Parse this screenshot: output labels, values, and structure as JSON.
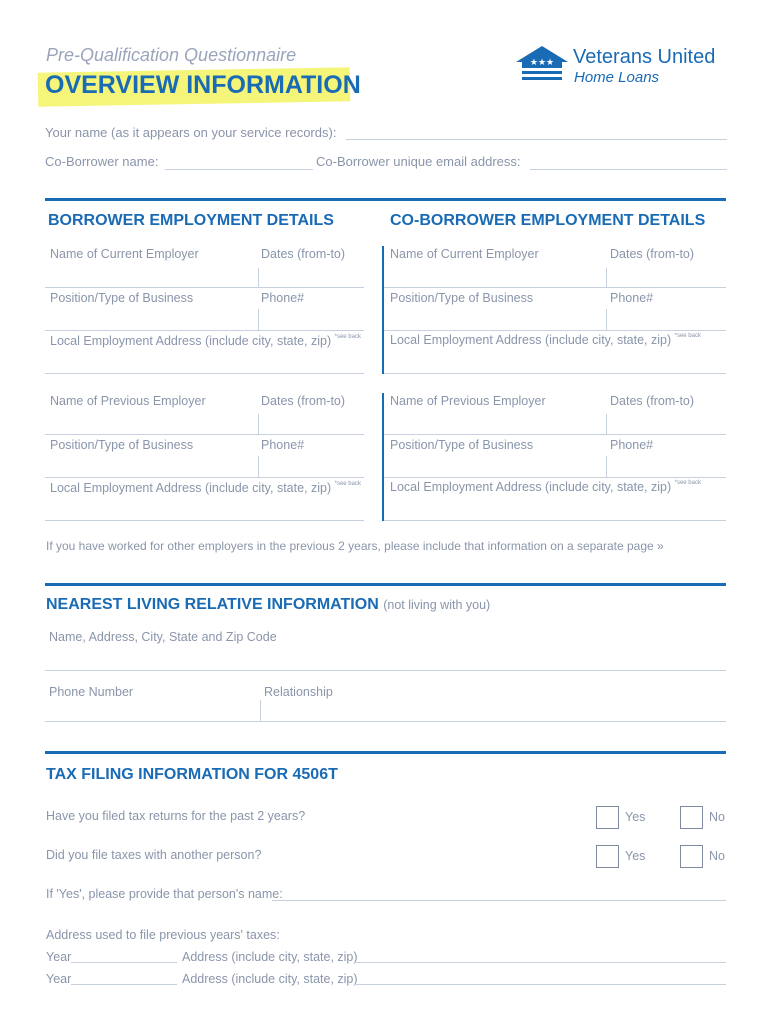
{
  "header": {
    "subtitle": "Pre-Qualification Questionnaire",
    "title": "OVERVIEW INFORMATION",
    "logo_line1": "Veterans United",
    "logo_line2": "Home Loans"
  },
  "top": {
    "your_name": "Your name (as it appears on your service records):",
    "co_name": "Co-Borrower name:",
    "co_email": "Co-Borrower unique email address:"
  },
  "employment": {
    "borrower_title": "BORROWER EMPLOYMENT DETAILS",
    "coborrower_title": "CO-BORROWER EMPLOYMENT DETAILS",
    "current_employer": "Name of Current Employer",
    "previous_employer": "Name of Previous Employer",
    "dates": "Dates (from-to)",
    "position": "Position/Type of Business",
    "phone": "Phone#",
    "address": "Local Employment Address (include city, state, zip)",
    "see_back": "*see back",
    "note": "If you have worked for other employers in the previous 2 years, please include that information on a separate page »"
  },
  "relative": {
    "title": "NEAREST LIVING RELATIVE INFORMATION",
    "title_note": "(not living with you)",
    "name_address": "Name, Address, City, State and Zip Code",
    "phone": "Phone Number",
    "relationship": "Relationship"
  },
  "tax": {
    "title": "TAX FILING INFORMATION FOR 4506T",
    "q1": "Have you filed tax returns for the past 2 years?",
    "q2": "Did you file taxes with another person?",
    "yes": "Yes",
    "no": "No",
    "if_yes": "If 'Yes', please provide that person's name:",
    "address_used": "Address used to file previous years' taxes:",
    "year": "Year",
    "address": "Address (include city, state, zip)"
  },
  "colors": {
    "accent": "#1a6bb5",
    "highlight": "#f5f57a",
    "label": "#8a95aa"
  }
}
